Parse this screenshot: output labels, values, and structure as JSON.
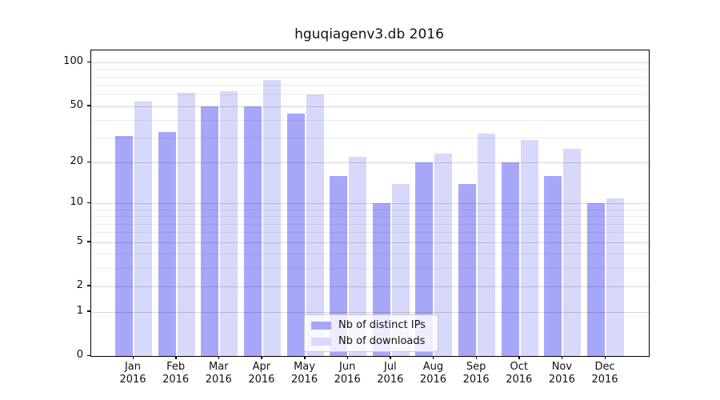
{
  "chart_data": {
    "type": "bar",
    "title": "hguqiagenv3.db 2016",
    "x": {
      "categories": [
        "Jan",
        "Feb",
        "Mar",
        "Apr",
        "May",
        "Jun",
        "Jul",
        "Aug",
        "Sep",
        "Oct",
        "Nov",
        "Dec"
      ],
      "year": "2016"
    },
    "series": [
      {
        "name": "Nb of distinct IPs",
        "color": "#a7a7fa",
        "values": [
          31,
          33,
          50,
          50,
          44,
          16,
          10,
          20,
          14,
          20,
          16,
          10
        ]
      },
      {
        "name": "Nb of downloads",
        "color": "#d8d8fa",
        "values": [
          54,
          62,
          63,
          76,
          60,
          22,
          14,
          23,
          32,
          29,
          25,
          11
        ]
      }
    ],
    "yscale": "log1p",
    "ylabel": "",
    "xlabel": "",
    "y_tick_labels": [
      "0",
      "1",
      "2",
      "5",
      "10",
      "20",
      "50",
      "100"
    ],
    "y_tick_values": [
      0,
      1,
      2,
      5,
      10,
      20,
      50,
      100
    ],
    "minor_grid_values": [
      1,
      2,
      3,
      4,
      5,
      6,
      7,
      8,
      9,
      10,
      20,
      30,
      40,
      50,
      60,
      70,
      80,
      90,
      100
    ],
    "ylim": [
      0,
      121
    ],
    "grid": true,
    "legend": {
      "position": "lower-center"
    }
  }
}
